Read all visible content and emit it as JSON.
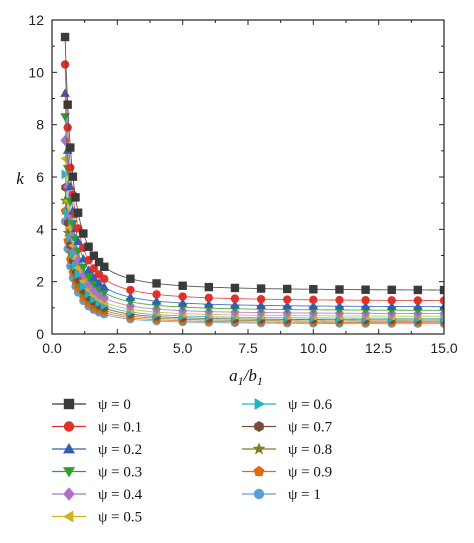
{
  "chart_data": {
    "type": "line",
    "xlabel": "a",
    "xlabel_sub1": "1",
    "xlabel_mid": "/b",
    "xlabel_sub2": "1",
    "ylabel": "k",
    "xlim": [
      0.0,
      15.0
    ],
    "ylim": [
      0,
      12
    ],
    "xticks": [
      "0.0",
      "2.5",
      "5.0",
      "7.5",
      "10.0",
      "12.5",
      "15.0"
    ],
    "yticks": [
      "0",
      "2",
      "4",
      "6",
      "8",
      "10",
      "12"
    ],
    "grid": false,
    "legend_position": "below",
    "x": [
      0.5,
      0.6,
      0.7,
      0.8,
      0.9,
      1.0,
      1.2,
      1.4,
      1.6,
      1.8,
      2.0,
      3,
      4,
      5,
      6,
      7,
      8,
      9,
      10,
      11,
      12,
      13,
      14,
      15
    ],
    "series": [
      {
        "name": "ψ = 0",
        "marker": "square",
        "color": "#3a3a3a",
        "k_inf": 1.65,
        "k0": 11.35
      },
      {
        "name": "ψ = 0.1",
        "marker": "circle",
        "color": "#e0302a",
        "k_inf": 1.25,
        "k0": 10.3
      },
      {
        "name": "ψ = 0.2",
        "marker": "triangle-up",
        "color": "#2f5fb3",
        "k_inf": 1.02,
        "k0": 9.2
      },
      {
        "name": "ψ = 0.3",
        "marker": "triangle-down",
        "color": "#2ca02c",
        "k_inf": 0.88,
        "k0": 8.3
      },
      {
        "name": "ψ = 0.4",
        "marker": "diamond",
        "color": "#b06fc9",
        "k_inf": 0.76,
        "k0": 7.4
      },
      {
        "name": "ψ = 0.5",
        "marker": "triangle-left",
        "color": "#d4b21f",
        "k_inf": 0.66,
        "k0": 6.7
      },
      {
        "name": "ψ = 0.6",
        "marker": "triangle-right",
        "color": "#24b3c4",
        "k_inf": 0.58,
        "k0": 6.1
      },
      {
        "name": "ψ = 0.7",
        "marker": "hexagon",
        "color": "#7a4a3c",
        "k_inf": 0.52,
        "k0": 5.6
      },
      {
        "name": "ψ = 0.8",
        "marker": "star",
        "color": "#808020",
        "k_inf": 0.47,
        "k0": 5.1
      },
      {
        "name": "ψ = 0.9",
        "marker": "pentagon",
        "color": "#e06a10",
        "k_inf": 0.42,
        "k0": 4.7
      },
      {
        "name": "ψ = 1",
        "marker": "circle",
        "color": "#5aa0d8",
        "k_inf": 0.38,
        "k0": 4.3
      }
    ]
  }
}
